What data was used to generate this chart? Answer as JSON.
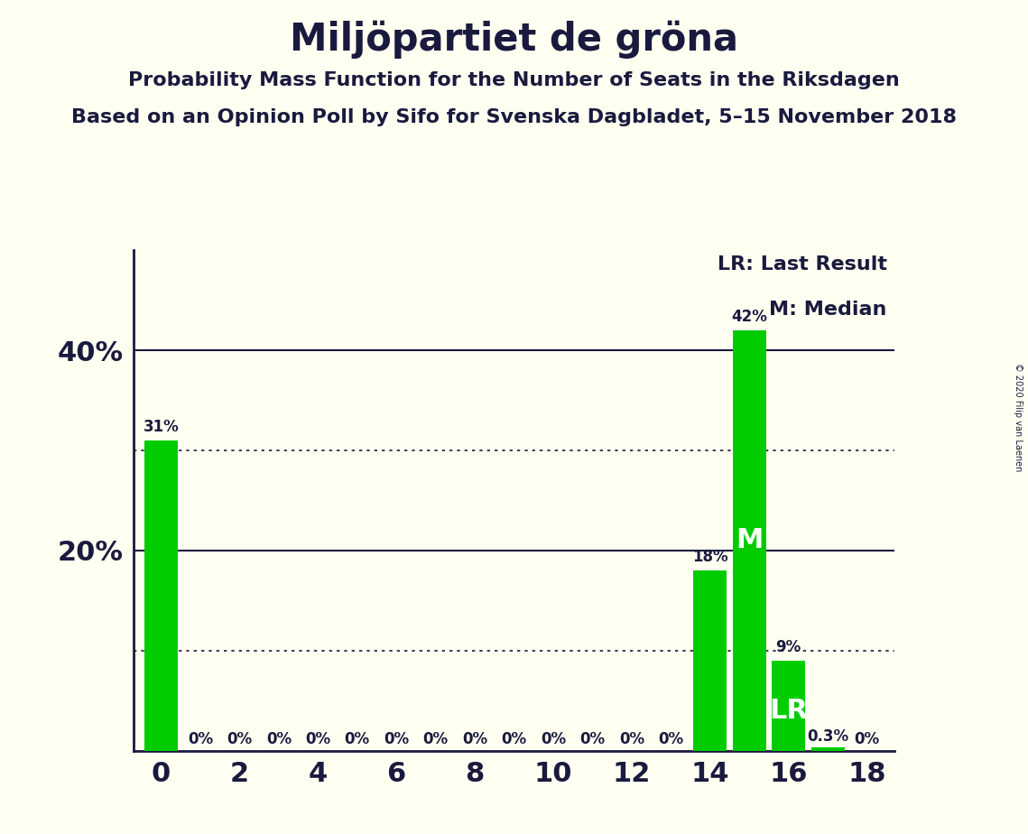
{
  "title": "Miljöpartiet de gröna",
  "subtitle1": "Probability Mass Function for the Number of Seats in the Riksdagen",
  "subtitle2": "Based on an Opinion Poll by Sifo for Svenska Dagbladet, 5–15 November 2018",
  "copyright": "© 2020 Filip van Laenen",
  "x_values": [
    0,
    1,
    2,
    3,
    4,
    5,
    6,
    7,
    8,
    9,
    10,
    11,
    12,
    13,
    14,
    15,
    16,
    17,
    18
  ],
  "y_values": [
    31,
    0,
    0,
    0,
    0,
    0,
    0,
    0,
    0,
    0,
    0,
    0,
    0,
    0,
    18,
    42,
    9,
    0.3,
    0
  ],
  "bar_color": "#00cc00",
  "background_color": "#fffff2",
  "median_seat": 15,
  "lr_seat": 16,
  "legend_lr": "LR: Last Result",
  "legend_m": "M: Median",
  "solid_lines": [
    20,
    40
  ],
  "dotted_lines": [
    10,
    30
  ],
  "xlim": [
    -0.7,
    18.7
  ],
  "ylim": [
    0,
    50
  ],
  "label_fontsize": 12,
  "ytick_fontsize": 22,
  "xtick_fontsize": 22,
  "title_fontsize": 30,
  "subtitle1_fontsize": 16,
  "subtitle2_fontsize": 16,
  "legend_fontsize": 16,
  "text_color": "#1a1a3e"
}
